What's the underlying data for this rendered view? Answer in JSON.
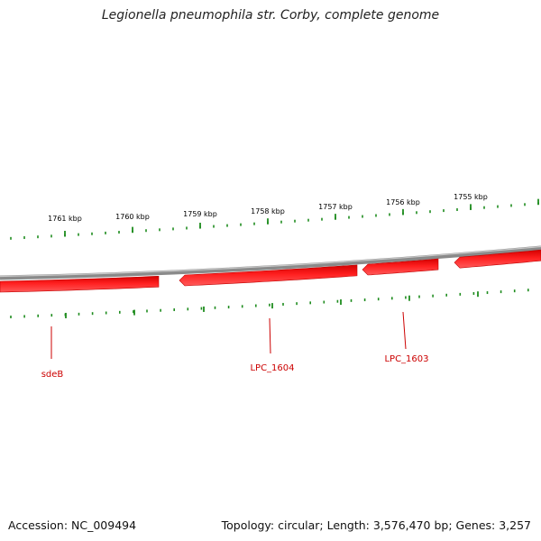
{
  "title": "Legionella pneumophila str. Corby, complete genome",
  "footer": {
    "accession": "Accession: NC_009494",
    "summary": "Topology: circular; Length: 3,576,470 bp; Genes: 3,257"
  },
  "colors": {
    "backbone": "#808080",
    "gene": "#ff0000",
    "gene_dark": "#b00000",
    "tick": "#1e8c1e",
    "label": "#cc0000",
    "scale_text": "#000000"
  },
  "scale_labels": [
    "1761 kbp",
    "1760 kbp",
    "1759 kbp",
    "1758 kbp",
    "1757 kbp",
    "1756 kbp",
    "1755 kbp"
  ],
  "genes": [
    {
      "name": "sdeB"
    },
    {
      "name": "LPC_1604"
    },
    {
      "name": "LPC_1603"
    }
  ]
}
